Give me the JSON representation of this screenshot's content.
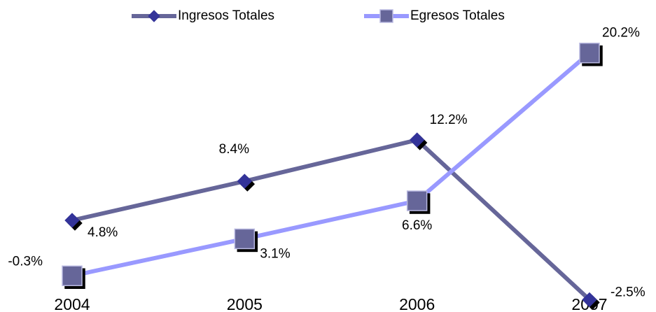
{
  "chart_data": {
    "type": "line",
    "categories": [
      "2004",
      "2005",
      "2006",
      "2007"
    ],
    "series": [
      {
        "name": "Ingresos Totales",
        "color": "#666699",
        "marker_color": "#333399",
        "marker": "diamond",
        "values": [
          4.8,
          8.4,
          12.2,
          -2.5
        ],
        "value_labels": [
          "4.8%",
          "8.4%",
          "12.2%",
          "-2.5%"
        ]
      },
      {
        "name": "Egresos Totales",
        "color": "#9999ff",
        "marker_color": "#666699",
        "marker": "square",
        "values": [
          -0.3,
          3.1,
          6.6,
          20.2
        ],
        "value_labels": [
          "-0.3%",
          "3.1%",
          "6.6%",
          "20.2%"
        ]
      }
    ],
    "ylim": [
      -3,
      21
    ],
    "legend": "top"
  }
}
